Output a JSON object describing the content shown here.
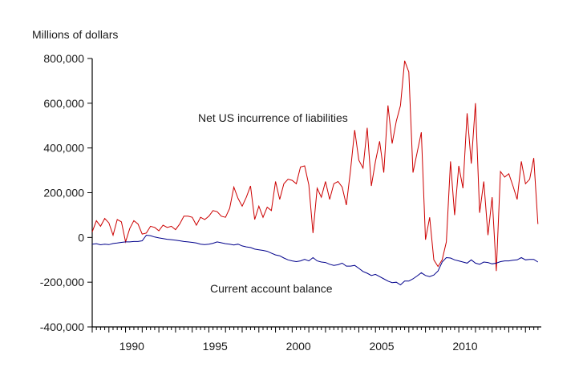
{
  "chart_data": {
    "type": "line",
    "title": "",
    "ylabel": "Millions of dollars",
    "xlabel": "",
    "x_start": 1988.0,
    "x_step": 0.25,
    "xlim": [
      1988.0,
      2014.95
    ],
    "ylim": [
      -400000,
      800000
    ],
    "y_ticks": [
      800000,
      600000,
      400000,
      200000,
      0,
      -200000,
      -400000
    ],
    "y_tick_labels": [
      "800,000",
      "600,000",
      "400,000",
      "200,000",
      "0",
      "-200,000",
      "-400,000"
    ],
    "x_ticks": [
      1990,
      1995,
      2000,
      2005,
      2010
    ],
    "x_tick_labels": [
      "1990",
      "1995",
      "2000",
      "2005",
      "2010"
    ],
    "grid": false,
    "legend": "none",
    "series": [
      {
        "name": "Net US incurrence of liabilities",
        "color": "#cc0000",
        "annotation": "Net US incurrence of liabilities",
        "values": [
          25000,
          75000,
          50000,
          85000,
          65000,
          10000,
          80000,
          70000,
          -20000,
          40000,
          75000,
          60000,
          15000,
          20000,
          50000,
          45000,
          30000,
          55000,
          45000,
          50000,
          35000,
          60000,
          95000,
          95000,
          90000,
          55000,
          90000,
          80000,
          95000,
          120000,
          115000,
          95000,
          90000,
          130000,
          225000,
          175000,
          140000,
          180000,
          230000,
          80000,
          140000,
          90000,
          135000,
          120000,
          250000,
          170000,
          240000,
          260000,
          255000,
          240000,
          315000,
          320000,
          235000,
          20000,
          220000,
          180000,
          250000,
          170000,
          240000,
          250000,
          225000,
          145000,
          300000,
          480000,
          345000,
          310000,
          490000,
          230000,
          340000,
          430000,
          290000,
          590000,
          420000,
          520000,
          590000,
          790000,
          740000,
          290000,
          380000,
          470000,
          -10000,
          90000,
          -100000,
          -130000,
          -100000,
          -20000,
          340000,
          100000,
          320000,
          220000,
          555000,
          330000,
          600000,
          110000,
          250000,
          10000,
          180000,
          -150000,
          295000,
          270000,
          285000,
          230000,
          170000,
          340000,
          240000,
          260000,
          355000,
          60000
        ]
      },
      {
        "name": "Current account balance",
        "color": "#00008b",
        "annotation": "Current account balance",
        "values": [
          -30000,
          -28000,
          -33000,
          -30000,
          -32000,
          -27000,
          -25000,
          -22000,
          -20000,
          -20000,
          -18000,
          -18000,
          -15000,
          10000,
          8000,
          2000,
          -2000,
          -5000,
          -8000,
          -10000,
          -12000,
          -15000,
          -18000,
          -20000,
          -22000,
          -25000,
          -30000,
          -32000,
          -30000,
          -26000,
          -20000,
          -24000,
          -28000,
          -30000,
          -34000,
          -30000,
          -38000,
          -42000,
          -45000,
          -52000,
          -55000,
          -58000,
          -62000,
          -70000,
          -78000,
          -82000,
          -92000,
          -100000,
          -105000,
          -108000,
          -105000,
          -98000,
          -105000,
          -90000,
          -105000,
          -110000,
          -112000,
          -120000,
          -125000,
          -122000,
          -115000,
          -128000,
          -128000,
          -125000,
          -138000,
          -152000,
          -160000,
          -170000,
          -165000,
          -175000,
          -185000,
          -195000,
          -202000,
          -200000,
          -212000,
          -195000,
          -195000,
          -185000,
          -172000,
          -158000,
          -170000,
          -175000,
          -168000,
          -150000,
          -110000,
          -90000,
          -92000,
          -100000,
          -105000,
          -110000,
          -115000,
          -100000,
          -115000,
          -120000,
          -110000,
          -112000,
          -118000,
          -115000,
          -108000,
          -105000,
          -105000,
          -102000,
          -100000,
          -90000,
          -100000,
          -98000,
          -98000,
          -110000
        ]
      }
    ]
  }
}
